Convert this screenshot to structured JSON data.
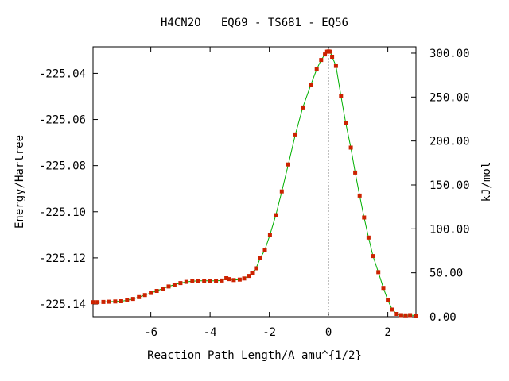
{
  "chart_data": {
    "type": "line",
    "title": "H4CN2O   EQ69 - TS681 - EQ56",
    "xlabel": "Reaction Path Length/A amu^{1/2}",
    "ylabel_left": "Energy/Hartree",
    "ylabel_right": "kJ/mol",
    "xlim": [
      -7.95,
      2.95
    ],
    "ylim_left": [
      -225.1455,
      -225.0285
    ],
    "ylim_right": [
      0,
      307.2
    ],
    "x_ticks": [
      -6,
      -4,
      -2,
      0,
      2
    ],
    "x_tick_labels": [
      "-6",
      "-4",
      "-2",
      "0",
      "2"
    ],
    "y_left_ticks": [
      -225.04,
      -225.06,
      -225.08,
      -225.1,
      -225.12,
      -225.14
    ],
    "y_left_tick_labels": [
      "-225.04",
      "-225.06",
      "-225.08",
      "-225.10",
      "-225.12",
      "-225.14"
    ],
    "y_right_ticks": [
      300,
      250,
      200,
      150,
      100,
      50,
      0
    ],
    "y_right_tick_labels": [
      "300.00",
      "250.00",
      "200.00",
      "150.00",
      "100.00",
      "50.00",
      "0.00"
    ],
    "ts_marker_x": 0,
    "grid": false,
    "line_color": "#00b000",
    "marker_color": "#cc2200",
    "ts_line_color": "#999999",
    "series": [
      {
        "x": [
          -7.95,
          -7.8,
          -7.6,
          -7.4,
          -7.2,
          -7.0,
          -6.8,
          -6.6,
          -6.4,
          -6.2,
          -6.0,
          -5.8,
          -5.6,
          -5.4,
          -5.2,
          -5.0,
          -4.8,
          -4.6,
          -4.4,
          -4.2,
          -4.0,
          -3.8,
          -3.6,
          -3.45,
          -3.35,
          -3.2,
          -3.0,
          -2.85,
          -2.7,
          -2.58,
          -2.45,
          -2.3,
          -2.15,
          -1.98,
          -1.78,
          -1.58,
          -1.36,
          -1.12,
          -0.87,
          -0.6,
          -0.4,
          -0.25,
          -0.12,
          -0.05,
          0.0,
          0.05,
          0.12,
          0.25,
          0.42,
          0.58,
          0.75,
          0.9,
          1.05,
          1.2,
          1.35,
          1.5,
          1.68,
          1.85,
          2.0,
          2.15,
          2.3,
          2.45,
          2.6,
          2.75,
          2.95
        ],
        "y": [
          -225.1392,
          -225.1392,
          -225.1391,
          -225.139,
          -225.1389,
          -225.1388,
          -225.1384,
          -225.1378,
          -225.137,
          -225.1361,
          -225.1352,
          -225.1343,
          -225.1333,
          -225.1324,
          -225.1316,
          -225.1309,
          -225.1304,
          -225.1301,
          -225.1299,
          -225.1299,
          -225.1299,
          -225.1299,
          -225.1298,
          -225.1288,
          -225.1292,
          -225.1296,
          -225.1294,
          -225.1289,
          -225.1278,
          -225.1264,
          -225.1245,
          -225.12,
          -225.1166,
          -225.11,
          -225.1015,
          -225.0912,
          -225.0795,
          -225.0665,
          -225.0548,
          -225.045,
          -225.0382,
          -225.0342,
          -225.0318,
          -225.0306,
          -225.0305,
          -225.0306,
          -225.0328,
          -225.0368,
          -225.05,
          -225.0615,
          -225.0722,
          -225.083,
          -225.093,
          -225.1025,
          -225.1112,
          -225.1192,
          -225.1262,
          -225.133,
          -225.1383,
          -225.1424,
          -225.1443,
          -225.1448,
          -225.1449,
          -225.1448,
          -225.145
        ]
      }
    ]
  }
}
